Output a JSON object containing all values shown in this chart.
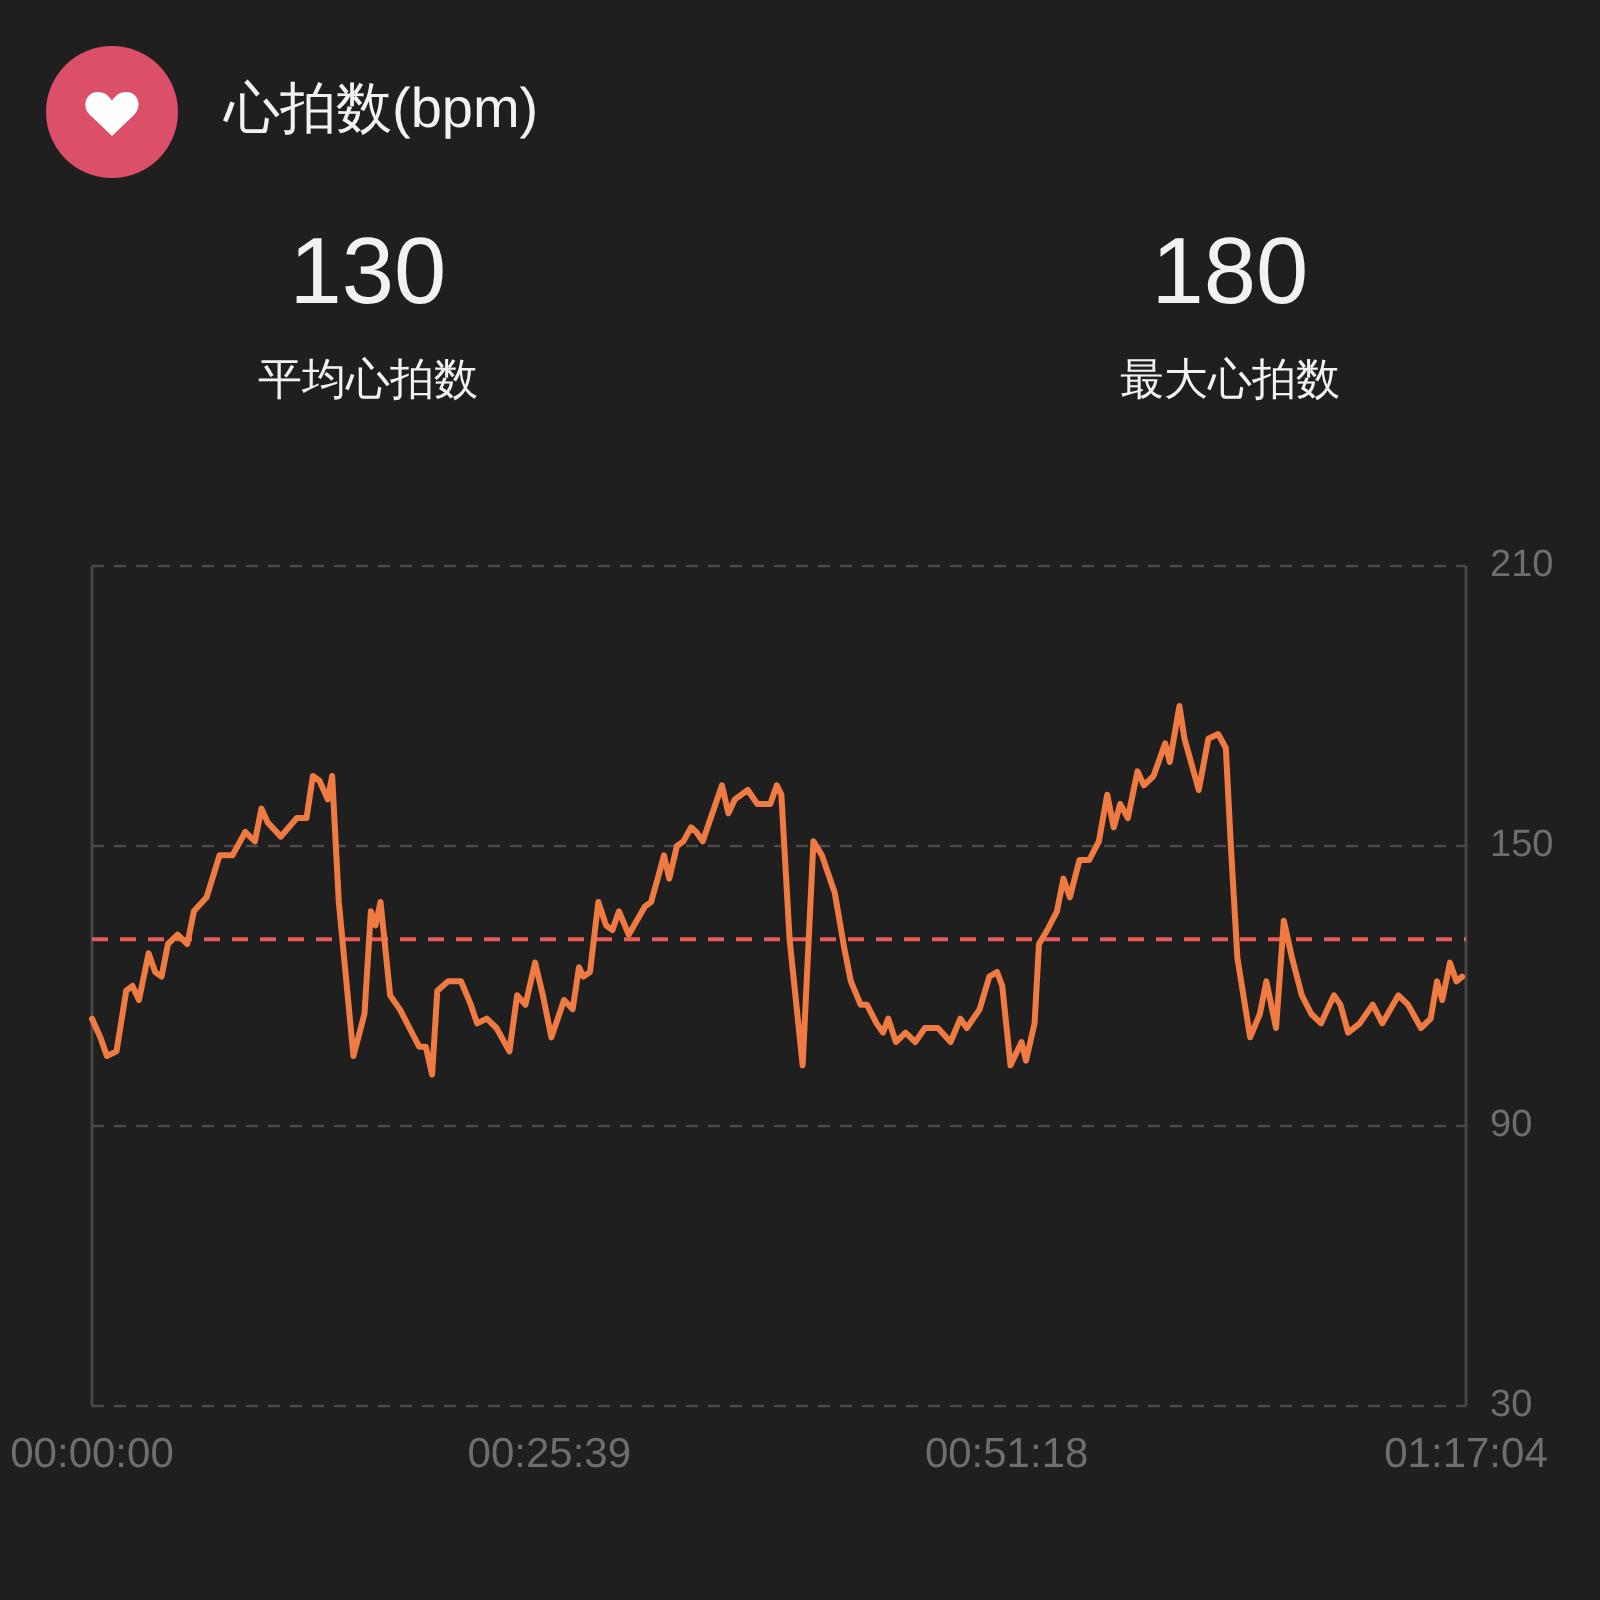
{
  "chart_data": {
    "type": "line",
    "title": "心拍数(bpm)",
    "annotations": [
      "130",
      "平均心拍数",
      "180",
      "最大心拍数"
    ],
    "x": [
      0,
      0.0078,
      0.0139,
      0.0229,
      0.032,
      0.0379,
      0.0439,
      0.0529,
      0.0591,
      0.065,
      0.071,
      0.08,
      0.0891,
      0.0952,
      0.1071,
      0.1192,
      0.1313,
      0.1433,
      0.1523,
      0.1584,
      0.1644,
      0.1765,
      0.1915,
      0.2005,
      0.2065,
      0.2126,
      0.2204,
      0.2245,
      0.2307,
      0.2444,
      0.2547,
      0.2607,
      0.265,
      0.2697,
      0.2787,
      0.2878,
      0.2968,
      0.3058,
      0.312,
      0.3179,
      0.3228,
      0.3329,
      0.345,
      0.3541,
      0.36,
      0.3691,
      0.3781,
      0.3902,
      0.3974,
      0.4052,
      0.4142,
      0.4215,
      0.4294,
      0.4413,
      0.4493,
      0.4552,
      0.4594,
      0.4655,
      0.4733,
      0.4805,
      0.4865,
      0.4926,
      0.5017,
      0.5167,
      0.5226,
      0.5288,
      0.5347,
      0.5396,
      0.5468,
      0.5528,
      0.56,
      0.5649,
      0.5709,
      0.5799,
      0.5889,
      0.5949,
      0.601,
      0.613,
      0.622,
      0.6341,
      0.6401,
      0.6444,
      0.6521,
      0.6643,
      0.6744,
      0.6823,
      0.6943,
      0.7033,
      0.7094,
      0.7185,
      0.7244,
      0.7334,
      0.7394,
      0.7443,
      0.7515,
      0.7605,
      0.7696,
      0.7786,
      0.7907,
      0.8026,
      0.8117,
      0.8178,
      0.8297,
      0.8388,
      0.846,
      0.8509,
      0.8586,
      0.8648,
      0.8689,
      0.8731,
      0.8811,
      0.8852,
      0.893,
      0.902,
      0.9081,
      0.9141,
      0.9231,
      0.9322,
      0.9412,
      0.949,
      0.9551,
      0.9611,
      0.9683,
      0.9773,
      0.9833,
      0.9923,
      1.0032,
      1.0075,
      1.0165,
      1.0212,
      1.0346,
      1.0436,
      1.0527,
      1.0599,
      1.0646,
      1.0707,
      1.0826,
      1.0917,
      1.0978,
      1.1068,
      1.1141,
      1.1218,
      1.1309,
      1.1399,
      1.1489,
      1.1549,
      1.161,
      1.167,
      1.1742,
      1.1851,
      1.1972,
      1.2062,
      1.2212,
      1.2302,
      1.2423,
      1.2514,
      1.2573,
      1.2622,
      1.2694,
      1.2754,
      1.2808
    ],
    "values": [
      113,
      109,
      105,
      106,
      119,
      120,
      117,
      127,
      123,
      122,
      129,
      131,
      129,
      136,
      139,
      148,
      148,
      153,
      151,
      158,
      155,
      152,
      156,
      156,
      165,
      164,
      160,
      165,
      138,
      105,
      114,
      136,
      133,
      138,
      118,
      115,
      111,
      107,
      107,
      101,
      119,
      121,
      121,
      116,
      112,
      113,
      111,
      106,
      118,
      116,
      125,
      118,
      109,
      117,
      115,
      124,
      122,
      123,
      138,
      133,
      132,
      136,
      131,
      137,
      138,
      143,
      148,
      143,
      150,
      151,
      154,
      153,
      151,
      157,
      163,
      157,
      160,
      162,
      159,
      159,
      163,
      161,
      130,
      103,
      151,
      148,
      140,
      128,
      121,
      116,
      116,
      112,
      110,
      113,
      108,
      110,
      108,
      111,
      111,
      108,
      113,
      111,
      115,
      122,
      123,
      120,
      103,
      106,
      108,
      104,
      112,
      129,
      132,
      136,
      143,
      139,
      147,
      147,
      151,
      161,
      154,
      159,
      156,
      166,
      163,
      165,
      172,
      168,
      180,
      173,
      162,
      173,
      174,
      171,
      150,
      126,
      109,
      114,
      121,
      111,
      134,
      126,
      118,
      114,
      112,
      115,
      118,
      116,
      110,
      112,
      116,
      112,
      118,
      116,
      111,
      113,
      121,
      117,
      125,
      121,
      122
    ],
    "color": "#ef7a42",
    "xlim": [
      0,
      1.2844
    ],
    "xticks": [
      {
        "value": 0,
        "label": "00:00:00"
      },
      {
        "value": 0.4275,
        "label": "00:25:39"
      },
      {
        "value": 0.855,
        "label": "00:51:18"
      },
      {
        "value": 1.2844,
        "label": "01:17:04"
      }
    ],
    "ylim": [
      30,
      210
    ],
    "yticks": [
      30,
      90,
      150,
      210
    ],
    "grid": "y",
    "ref_lines": [
      {
        "axis": "y",
        "value": 130,
        "color": "#e85a55",
        "line_style": "dashed"
      }
    ]
  }
}
